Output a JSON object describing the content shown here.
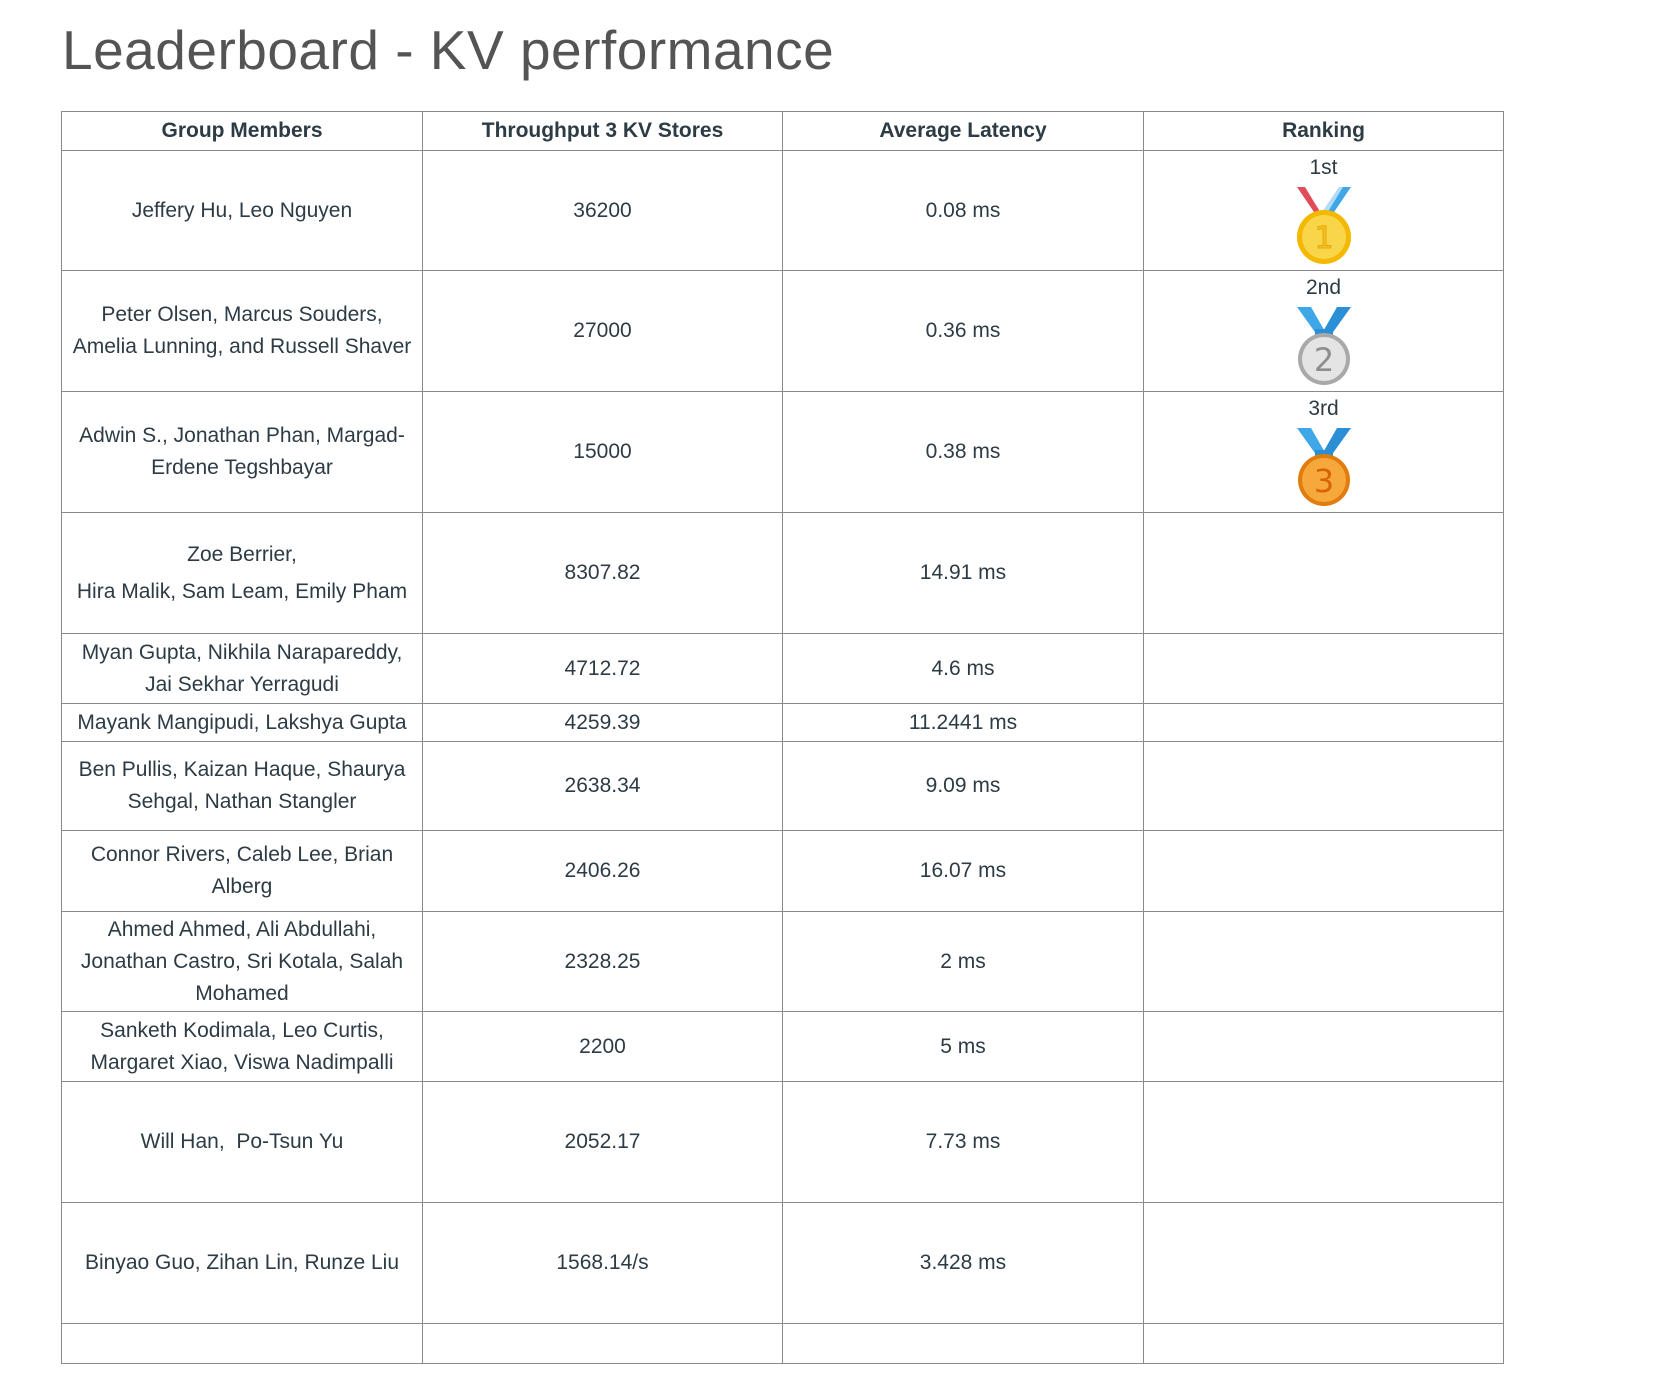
{
  "page": {
    "title": "Leaderboard - KV performance"
  },
  "table": {
    "headers": {
      "members": "Group Members",
      "throughput": "Throughput 3 KV Stores",
      "latency": "Average Latency",
      "ranking": "Ranking"
    },
    "rows": [
      {
        "members": "Jeffery Hu, Leo Nguyen",
        "throughput": "36200",
        "latency": "0.08 ms",
        "rank": "1st",
        "medal_icon": "gold-medal-icon"
      },
      {
        "members": "Peter Olsen, Marcus Souders, Amelia Lunning, and Russell Shaver",
        "throughput": "27000",
        "latency": "0.36 ms",
        "rank": "2nd",
        "medal_icon": "silver-medal-icon"
      },
      {
        "members": "Adwin S., Jonathan Phan, Margad-Erdene Tegshbayar",
        "throughput": "15000",
        "latency": "0.38 ms",
        "rank": "3rd",
        "medal_icon": "bronze-medal-icon"
      },
      {
        "members_line1": "Zoe Berrier,",
        "members_line2": "Hira Malik, Sam Leam, Emily Pham",
        "throughput": "8307.82",
        "latency": "14.91 ms",
        "rank": ""
      },
      {
        "members": "Myan Gupta, Nikhila Narapareddy, Jai Sekhar Yerragudi",
        "throughput": "4712.72",
        "latency": "4.6 ms",
        "rank": ""
      },
      {
        "members": "Mayank Mangipudi, Lakshya Gupta",
        "throughput": "4259.39",
        "latency": "11.2441 ms",
        "rank": ""
      },
      {
        "members": "Ben Pullis, Kaizan Haque, Shaurya Sehgal, Nathan Stangler",
        "throughput": "2638.34",
        "latency": "9.09 ms",
        "rank": ""
      },
      {
        "members": "Connor Rivers, Caleb Lee, Brian Alberg",
        "throughput": "2406.26",
        "latency": "16.07 ms",
        "rank": ""
      },
      {
        "members": "Ahmed Ahmed, Ali Abdullahi, Jonathan Castro, Sri Kotala, Salah Mohamed",
        "throughput": "2328.25",
        "latency": "2 ms",
        "rank": ""
      },
      {
        "members": "Sanketh Kodimala, Leo Curtis, Margaret Xiao, Viswa Nadimpalli",
        "throughput": "2200",
        "latency": "5 ms",
        "rank": ""
      },
      {
        "members": "Will Han,  Po-Tsun Yu",
        "throughput": "2052.17",
        "latency": "7.73 ms",
        "rank": ""
      },
      {
        "members": "Binyao Guo, Zihan Lin, Runze Liu",
        "throughput": "1568.14/s",
        "latency": "3.428 ms",
        "rank": ""
      }
    ]
  },
  "colors": {
    "title": "#545454",
    "text": "#2d3b45",
    "border": "#8a8a8a",
    "gold": "#f5c518",
    "silver": "#c8c8c8",
    "bronze": "#f39a1e",
    "ribbon_blue": "#3fa6e8",
    "ribbon_red": "#e14b5a"
  }
}
